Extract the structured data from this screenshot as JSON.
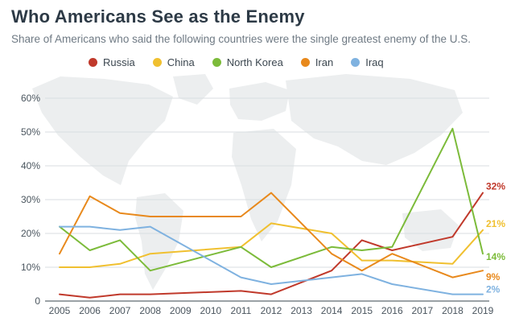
{
  "chart_data": {
    "type": "line",
    "title": "Who Americans See as the Enemy",
    "subtitle": "Share of Americans who said the following countries were the single greatest enemy of the U.S.",
    "x": [
      2005,
      2006,
      2007,
      2008,
      2009,
      2010,
      2011,
      2012,
      2013,
      2014,
      2015,
      2016,
      2017,
      2018,
      2019
    ],
    "x_labels": [
      "2005",
      "2006",
      "2007",
      "2008",
      "2009",
      "2010",
      "2011",
      "2012",
      "2013",
      "2014",
      "2015",
      "2016",
      "2017",
      "2018",
      "2019"
    ],
    "ylim": [
      0,
      60
    ],
    "y_ticks": [
      0,
      10,
      20,
      30,
      40,
      50,
      60
    ],
    "y_tick_labels": [
      "0",
      "10%",
      "20%",
      "30%",
      "40%",
      "50%",
      "60%"
    ],
    "grid": true,
    "legend_position": "top",
    "series": [
      {
        "name": "Russia",
        "color": "#c0392b",
        "values": [
          2,
          1,
          2,
          2,
          null,
          null,
          3,
          2,
          null,
          9,
          18,
          15,
          null,
          19,
          32
        ],
        "end_label": "32%"
      },
      {
        "name": "China",
        "color": "#f0c030",
        "values": [
          10,
          10,
          11,
          14,
          null,
          null,
          16,
          23,
          null,
          20,
          12,
          12,
          null,
          11,
          21
        ],
        "end_label": "21%"
      },
      {
        "name": "North Korea",
        "color": "#7cbb3a",
        "values": [
          22,
          15,
          18,
          9,
          null,
          null,
          16,
          10,
          null,
          16,
          15,
          16,
          null,
          51,
          14
        ],
        "end_label": "14%"
      },
      {
        "name": "Iran",
        "color": "#e8891c",
        "values": [
          14,
          31,
          26,
          25,
          null,
          null,
          25,
          32,
          null,
          14,
          9,
          14,
          null,
          7,
          9
        ],
        "end_label": "9%"
      },
      {
        "name": "Iraq",
        "color": "#7fb2e0",
        "values": [
          22,
          22,
          21,
          22,
          null,
          null,
          7,
          5,
          null,
          7,
          8,
          5,
          null,
          2,
          2
        ],
        "end_label": "2%"
      }
    ]
  }
}
